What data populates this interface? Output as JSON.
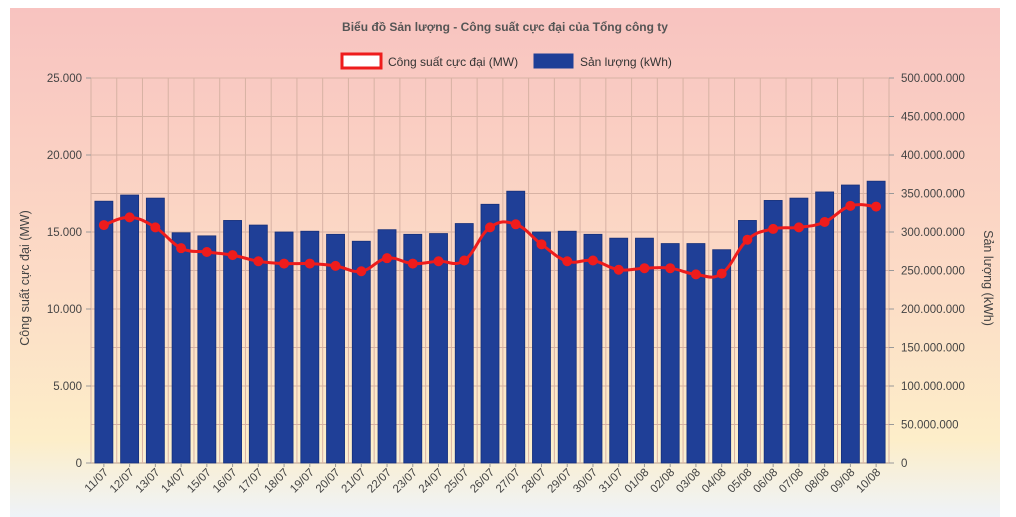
{
  "chart_data": {
    "type": "bar",
    "title": "Biểu đồ Sản lượng - Công suất cực đại của Tổng công ty",
    "categories": [
      "11/07",
      "12/07",
      "13/07",
      "14/07",
      "15/07",
      "16/07",
      "17/07",
      "18/07",
      "19/07",
      "20/07",
      "21/07",
      "22/07",
      "23/07",
      "24/07",
      "25/07",
      "26/07",
      "27/07",
      "28/07",
      "29/07",
      "30/07",
      "31/07",
      "01/08",
      "02/08",
      "03/08",
      "04/08",
      "05/08",
      "06/08",
      "07/08",
      "08/08",
      "09/08",
      "10/08"
    ],
    "series": [
      {
        "name": "Sản lượng (kWh)",
        "type": "bar",
        "axis": "right",
        "color": "#1f3f97",
        "values": [
          340000000,
          348000000,
          344000000,
          299000000,
          295000000,
          315000000,
          309000000,
          300000000,
          301000000,
          297000000,
          288000000,
          303000000,
          297000000,
          298000000,
          311000000,
          336000000,
          353000000,
          300000000,
          301000000,
          297000000,
          292000000,
          292000000,
          285000000,
          285000000,
          277000000,
          315000000,
          341000000,
          344000000,
          352000000,
          361000000,
          366000000
        ]
      },
      {
        "name": "Công suất cực đại (MW)",
        "type": "line",
        "axis": "left",
        "color": "#ee1c1c",
        "values": [
          15450,
          15950,
          15300,
          13950,
          13700,
          13500,
          13100,
          12950,
          12950,
          12800,
          12450,
          13300,
          12950,
          13100,
          13150,
          15300,
          15500,
          14200,
          13100,
          13150,
          12550,
          12650,
          12650,
          12250,
          12300,
          14500,
          15200,
          15300,
          15650,
          16700,
          16650
        ]
      }
    ],
    "ylabel": "Công suất cực đại (MW)",
    "y2label": "Sản lượng (kWh)",
    "ylim": [
      0,
      25000
    ],
    "y2lim": [
      0,
      500000000
    ],
    "yticks": [
      "0",
      "5.000",
      "10.000",
      "15.000",
      "20.000",
      "25.000"
    ],
    "y2ticks": [
      "0",
      "50.000.000",
      "100.000.000",
      "150.000.000",
      "200.000.000",
      "250.000.000",
      "300.000.000",
      "350.000.000",
      "400.000.000",
      "450.000.000",
      "500.000.000"
    ],
    "legend_position": "top-center",
    "grid": true
  }
}
